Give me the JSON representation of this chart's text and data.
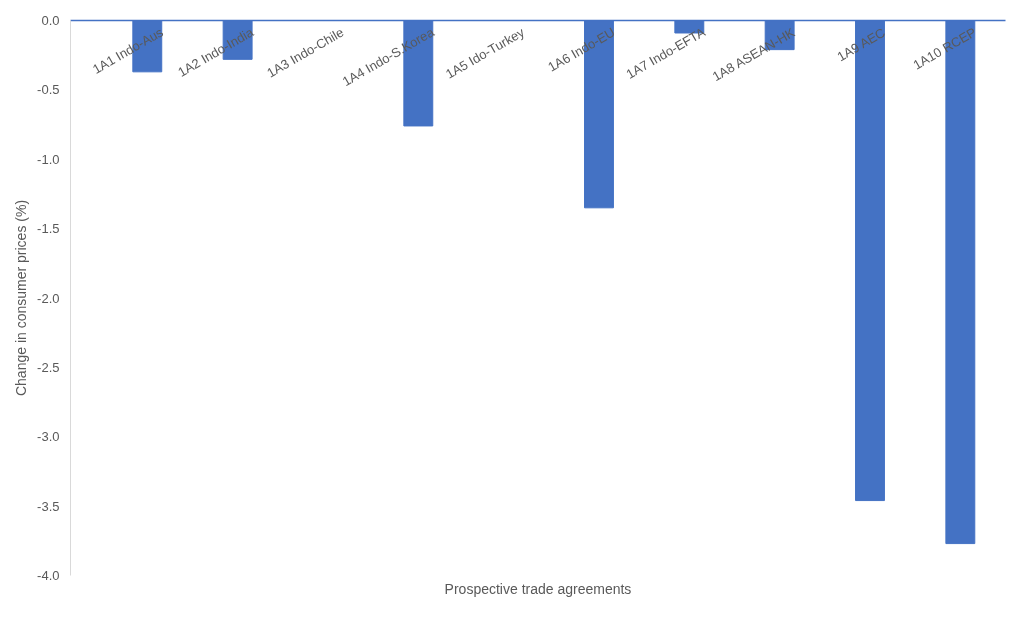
{
  "chart_data": {
    "type": "bar",
    "xlabel": "Prospective trade agreements",
    "ylabel": "Change in consumer prices (%)",
    "categories": [
      "1A1 Indo-Aus",
      "1A2 Indo-India",
      "1A3 Indo-Chile",
      "1A4 Indo-S.Korea",
      "1A5 Ido-Turkey",
      "1A6 Indo-EU",
      "1A7 Indo-EFTA",
      "1A8 ASEAN-HK",
      "1A9 AEC",
      "1A10 RCEP"
    ],
    "values": [
      -0.37,
      -0.28,
      0,
      -0.76,
      0,
      -1.35,
      -0.09,
      -0.21,
      -3.46,
      -3.77
    ],
    "color": "#4472c4",
    "ylim": [
      -4,
      0
    ],
    "yticks": [
      {
        "value": 0,
        "label": "0.0"
      },
      {
        "value": -0.5,
        "label": "-0.5"
      },
      {
        "value": -1,
        "label": "-1.0"
      },
      {
        "value": -1.5,
        "label": "-1.5"
      },
      {
        "value": -2,
        "label": "-2.0"
      },
      {
        "value": -2.5,
        "label": "-2.5"
      },
      {
        "value": -3,
        "label": "-3.0"
      },
      {
        "value": -3.5,
        "label": "-3.5"
      },
      {
        "value": -4,
        "label": "-4.0"
      }
    ],
    "grid": false
  }
}
